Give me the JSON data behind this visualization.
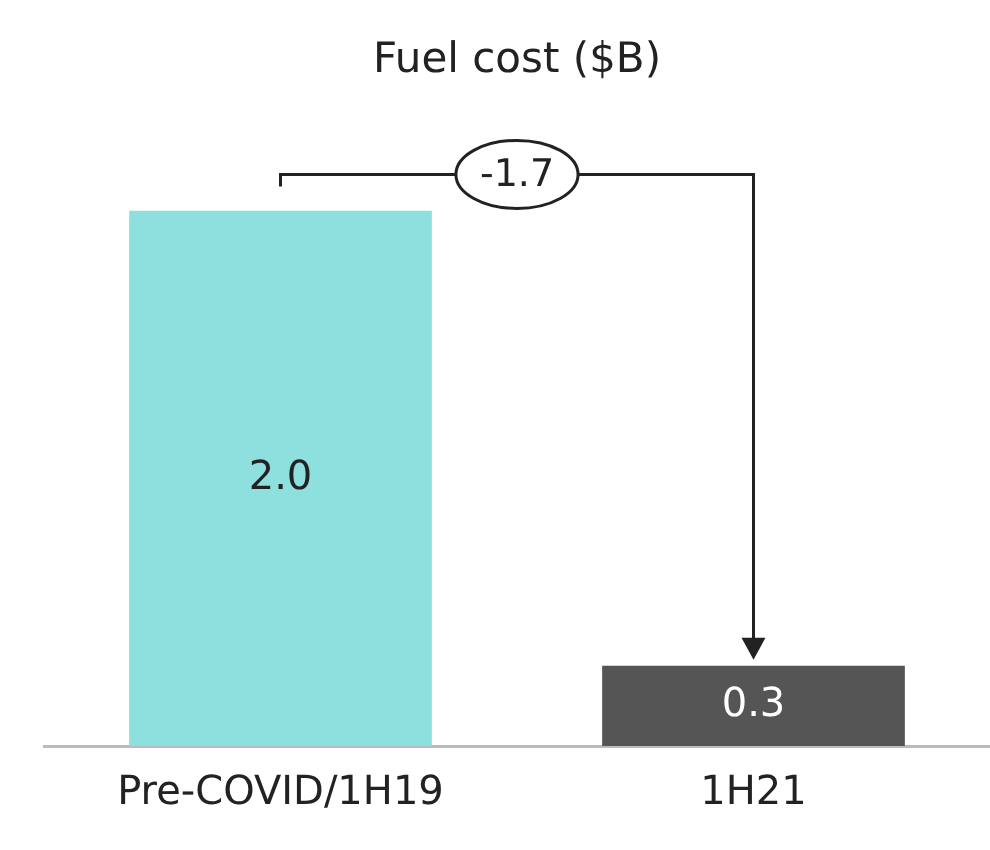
{
  "chart_data": {
    "type": "bar",
    "title": "Fuel cost ($B)",
    "categories": [
      "Pre-COVID/1H19",
      "1H21"
    ],
    "values": [
      2.0,
      0.3
    ],
    "value_labels": [
      "2.0",
      "0.3"
    ],
    "colors": [
      "#8ee0de",
      "#555555"
    ],
    "annotations": [
      "-1.7"
    ],
    "grid": false,
    "legend": false
  }
}
